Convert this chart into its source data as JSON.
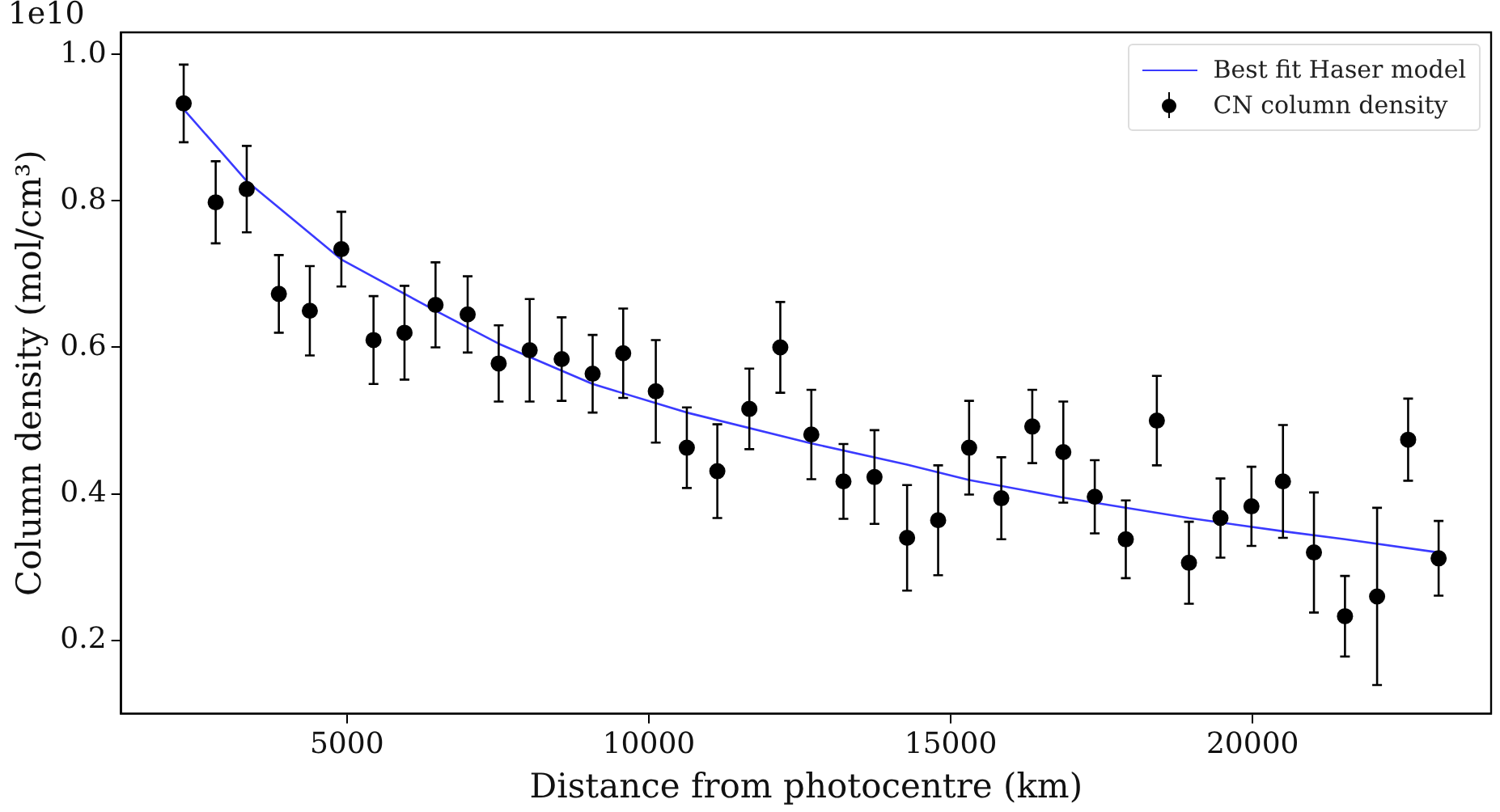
{
  "chart_data": {
    "type": "scatter",
    "xlabel": "Distance from photocentre (km)",
    "ylabel": "Column density (mol/cm³)",
    "annotations": [
      "1e10"
    ],
    "xlim": [
      1260,
      23950
    ],
    "xticks": [
      5000,
      10000,
      15000,
      20000
    ],
    "ylim": [
      0.1,
      1.03
    ],
    "yticks": [
      0.2,
      0.4,
      0.6,
      0.8,
      {
        "value": 1.0,
        "label": "1.0"
      }
    ],
    "grid": false,
    "legend": "top right",
    "series": [
      {
        "name": "Best fit Haser model",
        "type": "line",
        "color": "#3a3aff",
        "line_style": "solid",
        "marker": "none",
        "x": [
          2297,
          3341,
          4908,
          6468,
          7514,
          9070,
          10630,
          12692,
          14278,
          15305,
          16865,
          18946,
          20503,
          21530,
          23081
        ],
        "values": [
          0.925,
          0.827,
          0.72,
          0.65,
          0.605,
          0.55,
          0.511,
          0.469,
          0.44,
          0.419,
          0.395,
          0.367,
          0.349,
          0.338,
          0.32
        ]
      },
      {
        "name": "CN column density",
        "color": "#000000",
        "marker": "circle",
        "x": [
          2297,
          2827,
          3341,
          3873,
          4386,
          4908,
          5441,
          5954,
          6468,
          7000,
          7514,
          8027,
          8557,
          9070,
          9576,
          10116,
          10630,
          11135,
          11665,
          12178,
          12692,
          13224,
          13738,
          14278,
          14792,
          15305,
          15838,
          16351,
          16865,
          17386,
          17900,
          18414,
          18946,
          19468,
          19981,
          20503,
          21016,
          21530,
          22062,
          22576,
          23081
        ],
        "values": [
          0.933,
          0.798,
          0.816,
          0.673,
          0.65,
          0.734,
          0.61,
          0.62,
          0.658,
          0.645,
          0.578,
          0.596,
          0.584,
          0.564,
          0.592,
          0.54,
          0.463,
          0.431,
          0.516,
          0.6,
          0.481,
          0.417,
          0.423,
          0.34,
          0.364,
          0.463,
          0.394,
          0.492,
          0.457,
          0.396,
          0.338,
          0.5,
          0.306,
          0.367,
          0.383,
          0.417,
          0.32,
          0.233,
          0.26,
          0.474,
          0.312
        ],
        "errors": [
          0.053,
          0.056,
          0.059,
          0.053,
          0.061,
          0.051,
          0.06,
          0.064,
          0.058,
          0.052,
          0.052,
          0.07,
          0.057,
          0.053,
          0.061,
          0.07,
          0.055,
          0.064,
          0.055,
          0.062,
          0.061,
          0.051,
          0.064,
          0.072,
          0.075,
          0.064,
          0.056,
          0.05,
          0.069,
          0.05,
          0.053,
          0.061,
          0.056,
          0.054,
          0.054,
          0.077,
          0.082,
          0.055,
          0.121,
          0.056,
          0.051
        ]
      }
    ]
  }
}
